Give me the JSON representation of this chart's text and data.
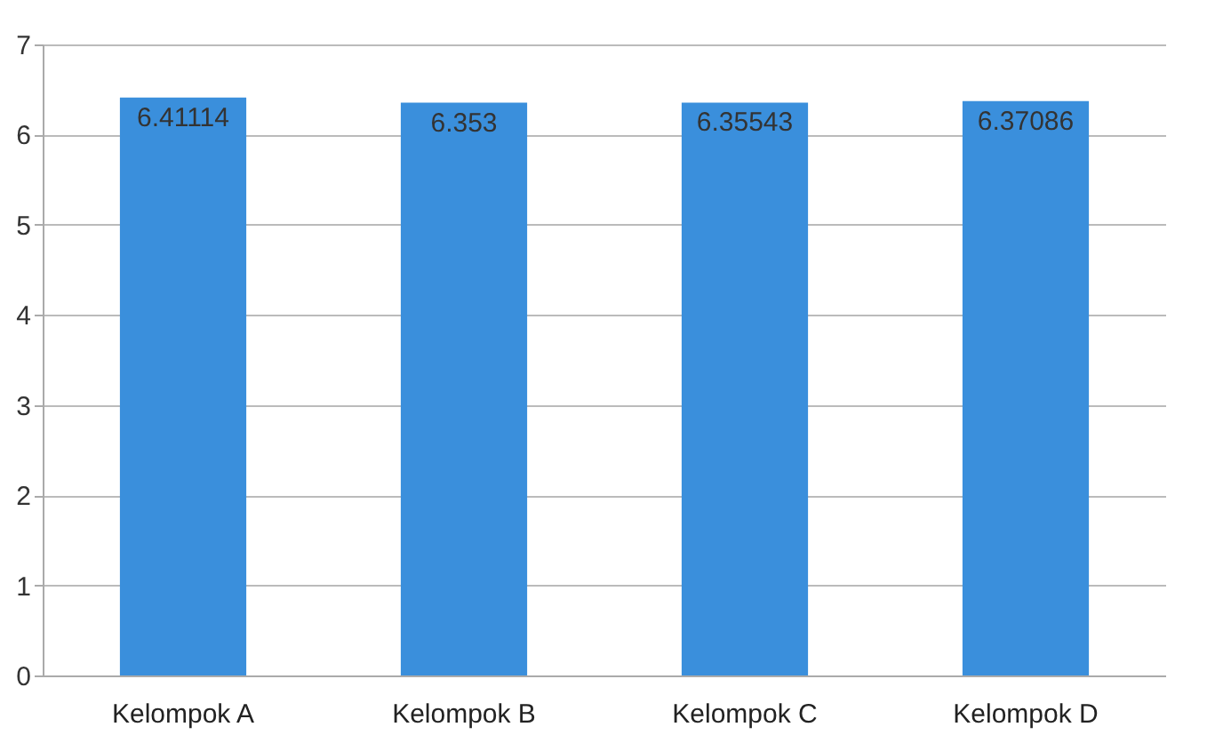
{
  "chart_data": {
    "type": "bar",
    "categories": [
      "Kelompok A",
      "Kelompok B",
      "Kelompok C",
      "Kelompok D"
    ],
    "values": [
      6.41114,
      6.353,
      6.35543,
      6.37086
    ],
    "color": "#3a8fdc",
    "ylim": [
      0,
      7
    ],
    "yticks": [
      0,
      1,
      2,
      3,
      4,
      5,
      6,
      7
    ],
    "grid": "y",
    "data_labels": true
  }
}
